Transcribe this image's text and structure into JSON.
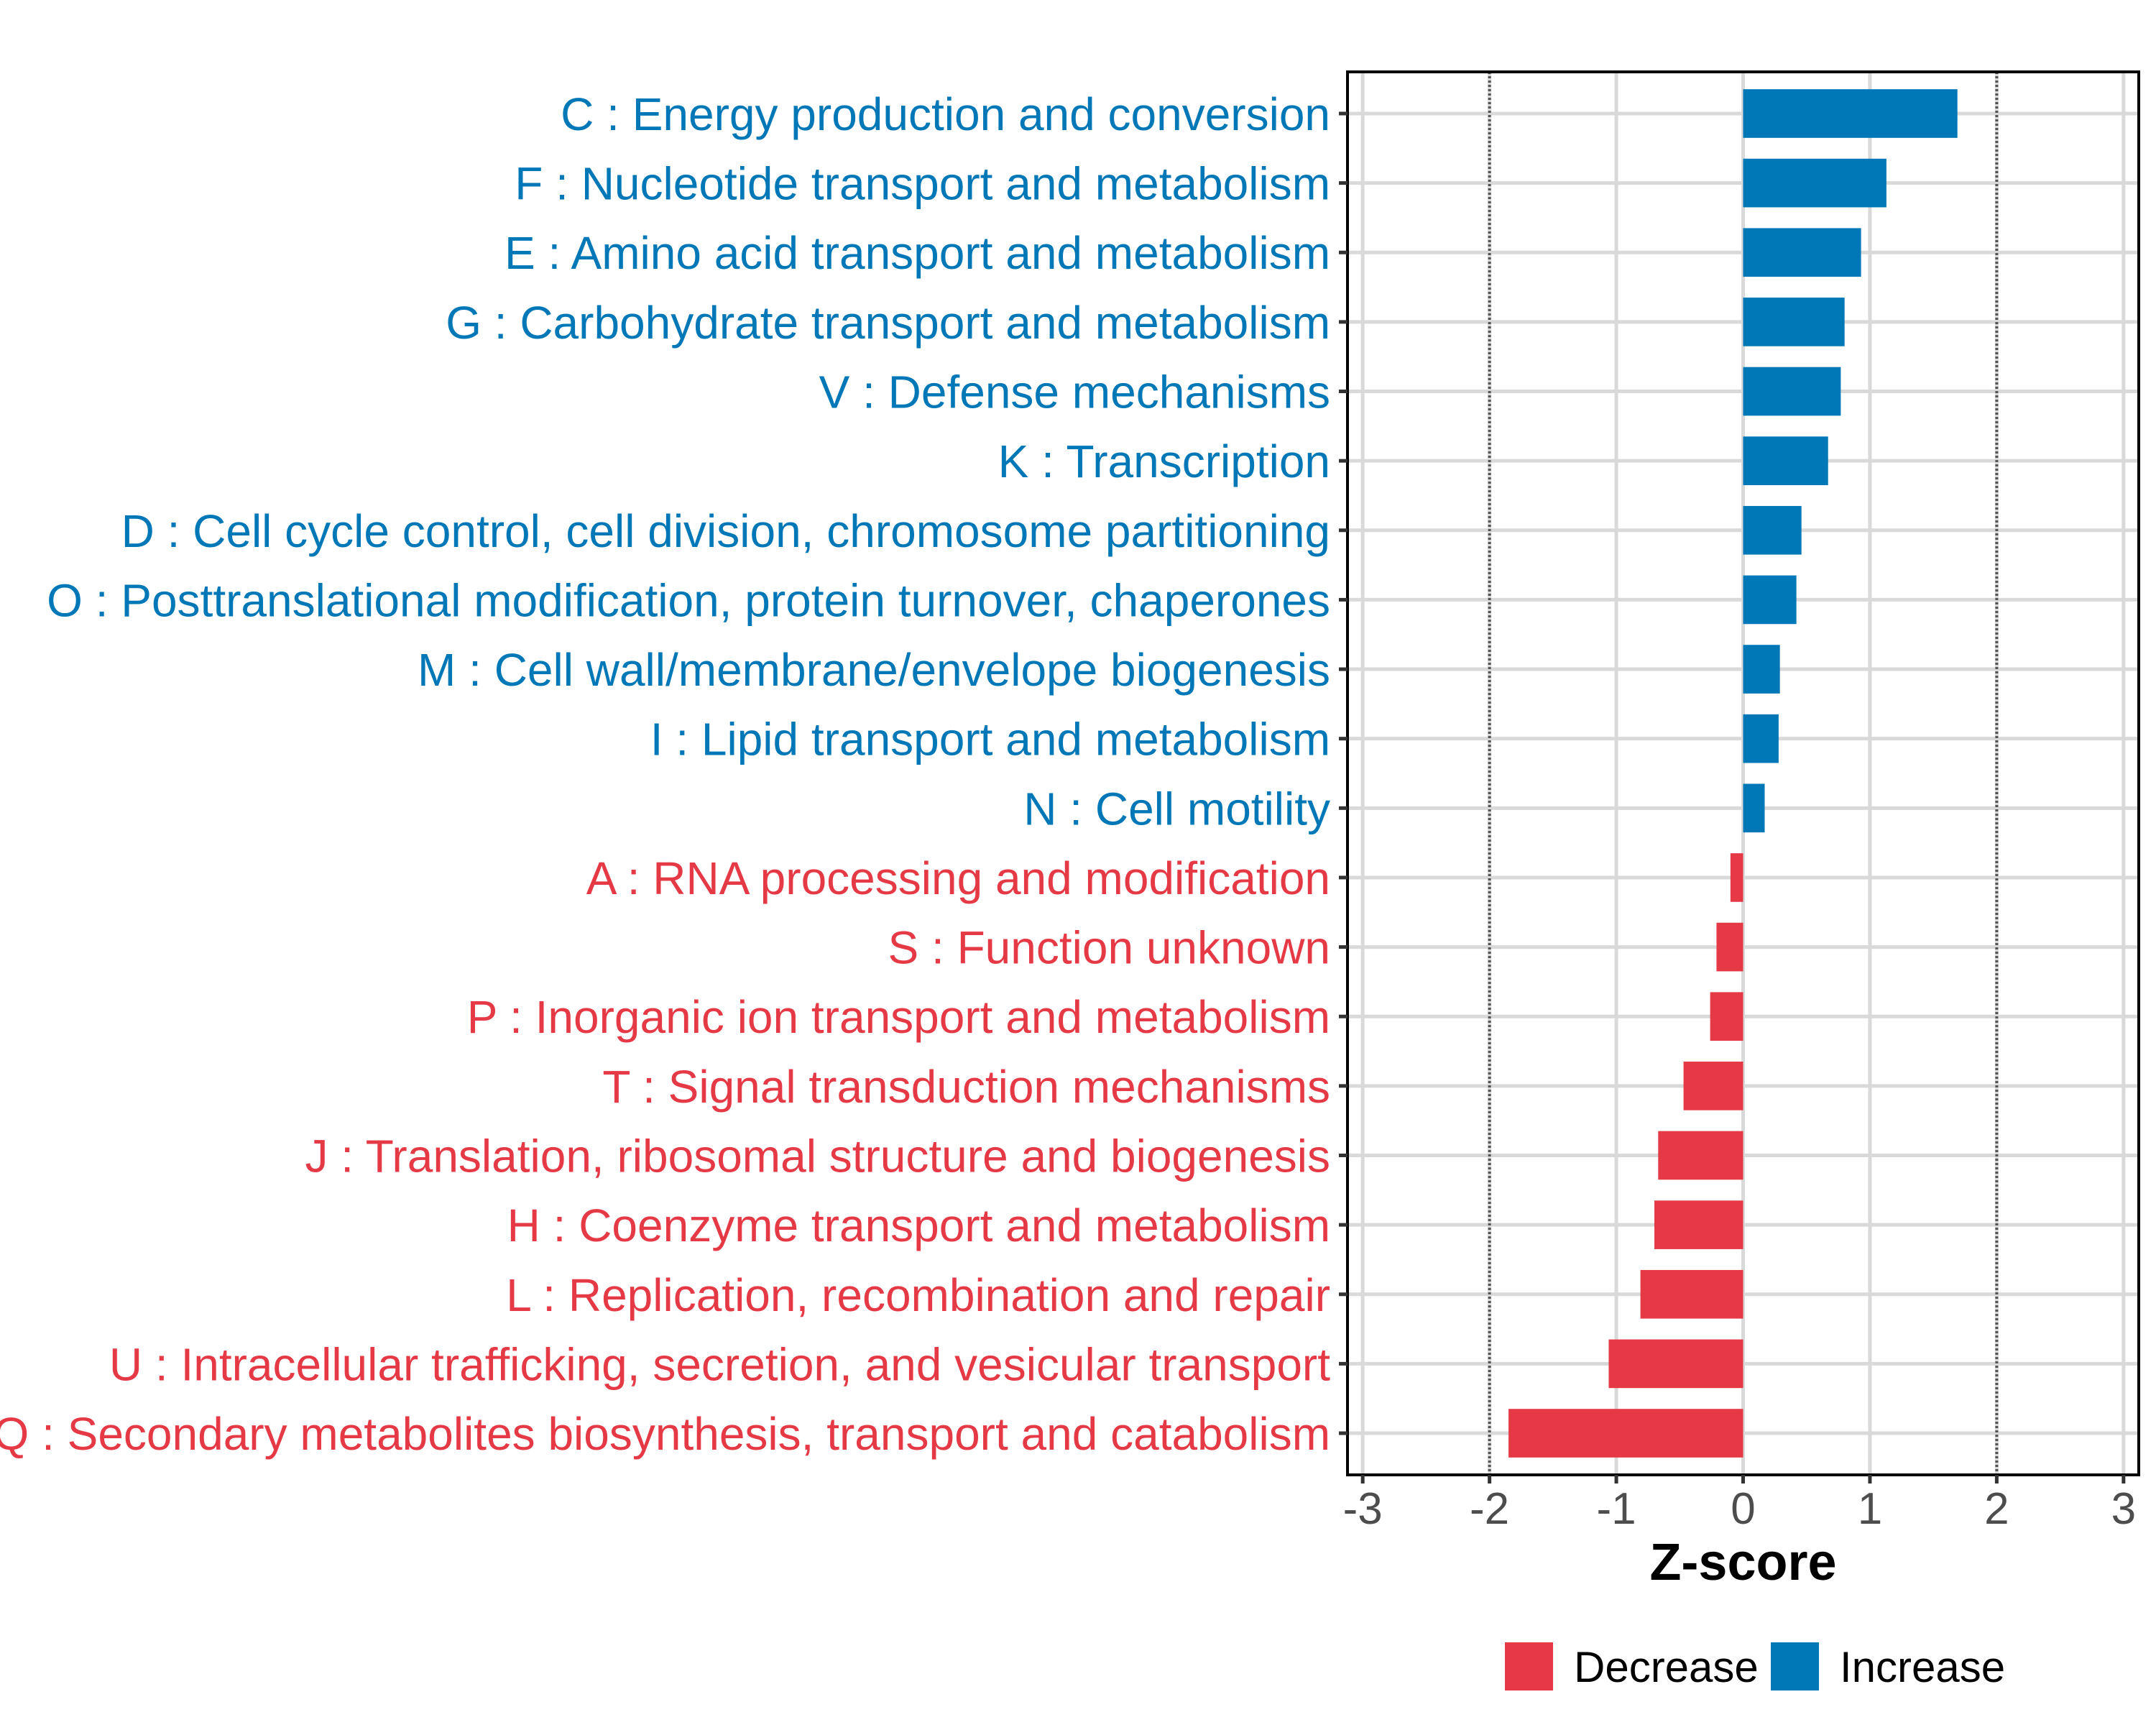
{
  "chart_data": {
    "type": "bar",
    "orientation": "horizontal",
    "title": "",
    "xlabel": "Z-score",
    "ylabel": "",
    "xlim": [
      -3.12,
      3.12
    ],
    "xticks": [
      -3,
      -2,
      -1,
      0,
      1,
      2,
      3
    ],
    "xtick_labels": [
      "-3",
      "-2",
      "-1",
      "0",
      "1",
      "2",
      "3"
    ],
    "reference_lines": [
      {
        "x": -2,
        "style": "dotted",
        "color": "#555555"
      },
      {
        "x": 2,
        "style": "dotted",
        "color": "#555555"
      }
    ],
    "grid": true,
    "categories": [
      "C : Energy production and conversion",
      "F : Nucleotide transport and metabolism",
      "E : Amino acid transport and metabolism",
      "G : Carbohydrate transport and metabolism",
      "V : Defense mechanisms",
      "K : Transcription",
      "D : Cell cycle control, cell division, chromosome partitioning",
      "O : Posttranslational modification, protein turnover, chaperones",
      "M : Cell wall/membrane/envelope biogenesis",
      "I : Lipid transport and metabolism",
      "N : Cell motility",
      "A : RNA processing and modification",
      "S : Function unknown",
      "P : Inorganic ion transport and metabolism",
      "T : Signal transduction mechanisms",
      "J : Translation, ribosomal structure and biogenesis",
      "H : Coenzyme transport and metabolism",
      "L : Replication, recombination and repair",
      "U : Intracellular trafficking, secretion, and vesicular transport",
      "Q : Secondary metabolites biosynthesis, transport and catabolism"
    ],
    "values": [
      1.69,
      1.13,
      0.93,
      0.8,
      0.77,
      0.67,
      0.46,
      0.42,
      0.29,
      0.28,
      0.17,
      -0.1,
      -0.21,
      -0.26,
      -0.47,
      -0.67,
      -0.7,
      -0.81,
      -1.06,
      -1.85
    ],
    "groups": [
      "Increase",
      "Increase",
      "Increase",
      "Increase",
      "Increase",
      "Increase",
      "Increase",
      "Increase",
      "Increase",
      "Increase",
      "Increase",
      "Decrease",
      "Decrease",
      "Decrease",
      "Decrease",
      "Decrease",
      "Decrease",
      "Decrease",
      "Decrease",
      "Decrease"
    ],
    "legend": {
      "position": "bottom",
      "entries": [
        {
          "label": "Decrease",
          "color": "#E63946"
        },
        {
          "label": "Increase",
          "color": "#0077B6"
        }
      ]
    },
    "colors": {
      "Increase": "#0077B6",
      "Decrease": "#E63946"
    }
  }
}
